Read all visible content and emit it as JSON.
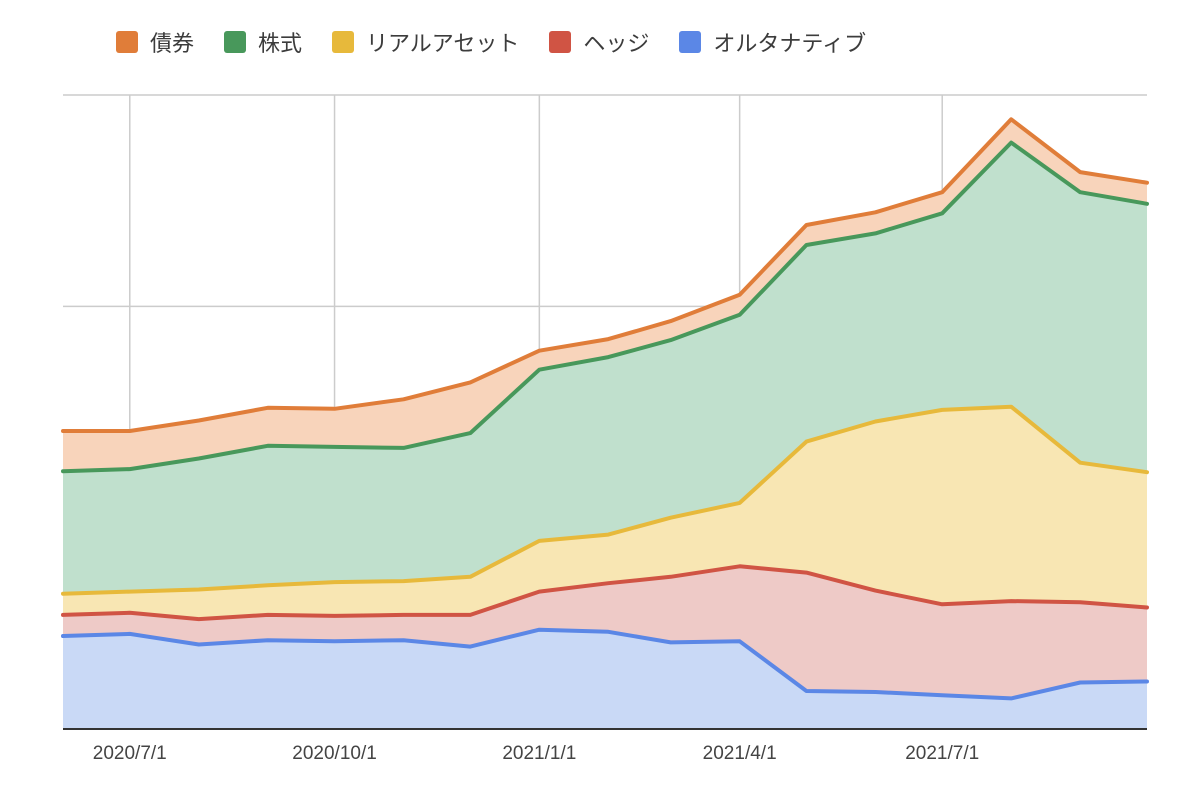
{
  "chart_data": {
    "type": "area",
    "stacked": true,
    "title": "",
    "xlabel": "",
    "ylabel": "",
    "x": [
      "2020-06-01",
      "2020-07-01",
      "2020-08-01",
      "2020-09-01",
      "2020-10-01",
      "2020-11-01",
      "2020-12-01",
      "2021-01-01",
      "2021-02-01",
      "2021-03-01",
      "2021-04-01",
      "2021-05-01",
      "2021-06-01",
      "2021-07-01",
      "2021-08-01",
      "2021-09-01",
      "2021-10-01"
    ],
    "x_tick_labels": [
      {
        "date": "2020-07-01",
        "label": "2020/7/1"
      },
      {
        "date": "2020-10-01",
        "label": "2020/10/1"
      },
      {
        "date": "2021-01-01",
        "label": "2021/1/1"
      },
      {
        "date": "2021-04-01",
        "label": "2021/4/1"
      },
      {
        "date": "2021-07-01",
        "label": "2021/7/1"
      }
    ],
    "ylim": [
      0,
      3
    ],
    "y_gridlines": [
      0,
      1,
      2,
      3
    ],
    "y_tick_labels_shown": false,
    "grid": true,
    "legend_position": "top-left",
    "series": [
      {
        "name": "オルタナティブ",
        "color": "#5b87e6",
        "fill": "#c9d9f6",
        "values": [
          0.44,
          0.45,
          0.4,
          0.42,
          0.415,
          0.42,
          0.39,
          0.47,
          0.46,
          0.41,
          0.415,
          0.18,
          0.175,
          0.16,
          0.145,
          0.22,
          0.225
        ]
      },
      {
        "name": "ヘッジ",
        "color": "#d05444",
        "fill": "#eecac7",
        "values": [
          0.1,
          0.1,
          0.12,
          0.12,
          0.12,
          0.12,
          0.15,
          0.18,
          0.23,
          0.31,
          0.355,
          0.56,
          0.48,
          0.43,
          0.46,
          0.38,
          0.35
        ]
      },
      {
        "name": "リアルアセット",
        "color": "#e7b93b",
        "fill": "#f8e6b3",
        "values": [
          0.1,
          0.1,
          0.14,
          0.14,
          0.16,
          0.16,
          0.18,
          0.24,
          0.23,
          0.28,
          0.3,
          0.62,
          0.8,
          0.92,
          0.92,
          0.66,
          0.64
        ]
      },
      {
        "name": "株式",
        "color": "#48985b",
        "fill": "#c0e0cd",
        "values": [
          0.58,
          0.58,
          0.62,
          0.66,
          0.64,
          0.63,
          0.68,
          0.81,
          0.84,
          0.84,
          0.89,
          0.93,
          0.89,
          0.93,
          1.25,
          1.28,
          1.27
        ]
      },
      {
        "name": "債券",
        "color": "#e07d39",
        "fill": "#f8d4bb",
        "values": [
          0.19,
          0.18,
          0.18,
          0.18,
          0.18,
          0.23,
          0.24,
          0.09,
          0.085,
          0.09,
          0.095,
          0.095,
          0.1,
          0.1,
          0.11,
          0.095,
          0.1
        ]
      }
    ]
  },
  "legend": [
    {
      "label": "債券",
      "color": "#e07d39"
    },
    {
      "label": "株式",
      "color": "#48985b"
    },
    {
      "label": "リアルアセット",
      "color": "#e7b93b"
    },
    {
      "label": "ヘッジ",
      "color": "#d05444"
    },
    {
      "label": "オルタナティブ",
      "color": "#5b87e6"
    }
  ]
}
